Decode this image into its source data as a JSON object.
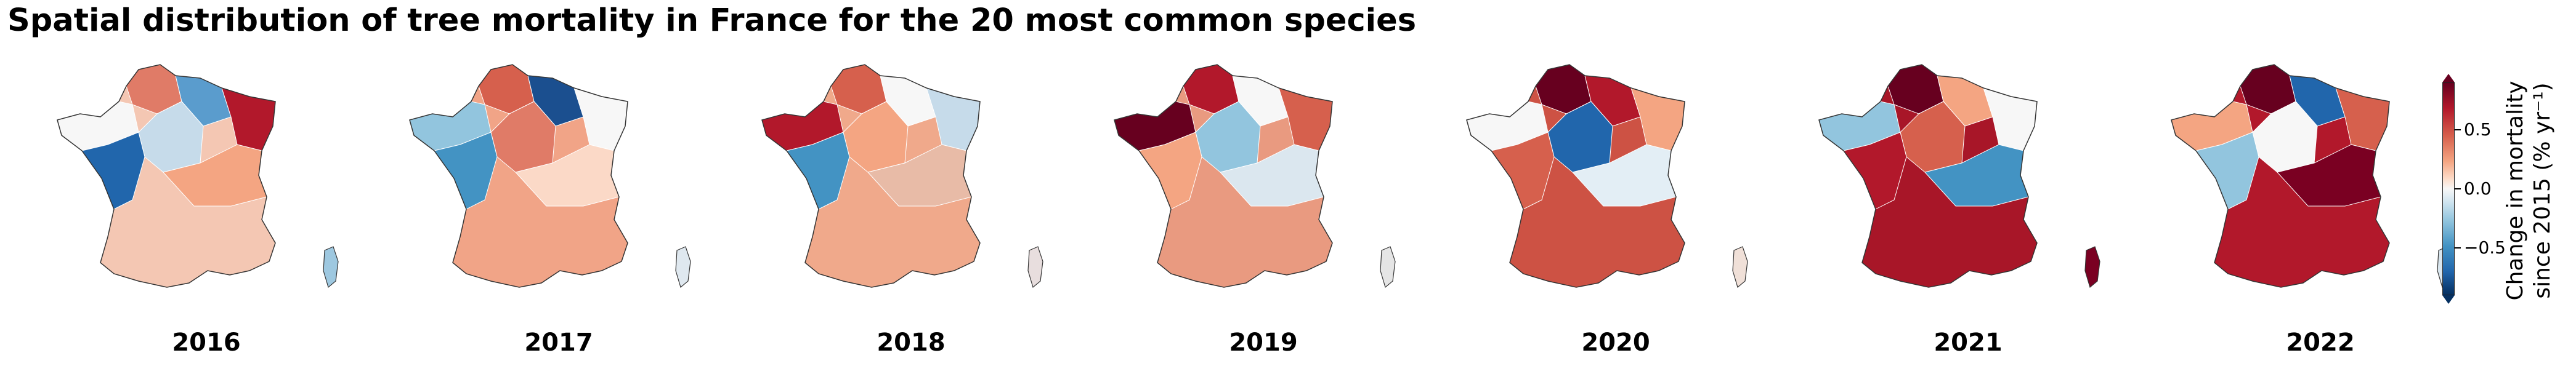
{
  "title": "Spatial distribution of tree mortality in France for the 20 most common species",
  "panels": [
    {
      "year": "2016",
      "fill": "#f4c7b3",
      "corsica": "#9ec8e0",
      "patches": [
        {
          "c": "#e07b67"
        },
        {
          "c": "#5a9ccd"
        },
        {
          "c": "#b2182b"
        },
        {
          "c": "#f7f7f7"
        },
        {
          "c": "#c6dbea"
        },
        {
          "c": "#2166ac"
        },
        {
          "c": "#f4a582"
        }
      ]
    },
    {
      "year": "2017",
      "fill": "#f1a487",
      "corsica": "#dfe8ef",
      "patches": [
        {
          "c": "#d6604d"
        },
        {
          "c": "#1b4f8f"
        },
        {
          "c": "#f7f7f7"
        },
        {
          "c": "#92c5de"
        },
        {
          "c": "#e07b67"
        },
        {
          "c": "#4393c3"
        },
        {
          "c": "#fbd9c7"
        }
      ]
    },
    {
      "year": "2018",
      "fill": "#f0a98b",
      "corsica": "#e8dede",
      "patches": [
        {
          "c": "#d6604d"
        },
        {
          "c": "#f7f7f7"
        },
        {
          "c": "#c6dbea"
        },
        {
          "c": "#b2182b"
        },
        {
          "c": "#f4a582"
        },
        {
          "c": "#4393c3"
        },
        {
          "c": "#e8bba7"
        }
      ]
    },
    {
      "year": "2019",
      "fill": "#e99a80",
      "corsica": "#e5e5e5",
      "patches": [
        {
          "c": "#b2182b"
        },
        {
          "c": "#f7f7f7"
        },
        {
          "c": "#d6604d"
        },
        {
          "c": "#67001f"
        },
        {
          "c": "#92c5de"
        },
        {
          "c": "#f4a582"
        },
        {
          "c": "#dbe7ef"
        }
      ]
    },
    {
      "year": "2020",
      "fill": "#cd5244",
      "corsica": "#f0e0d8",
      "patches": [
        {
          "c": "#67001f"
        },
        {
          "c": "#b2182b"
        },
        {
          "c": "#f4a582"
        },
        {
          "c": "#f7f7f7"
        },
        {
          "c": "#2166ac"
        },
        {
          "c": "#d6604d"
        },
        {
          "c": "#e3eef5"
        }
      ]
    },
    {
      "year": "2021",
      "fill": "#a81628",
      "corsica": "#7a0022",
      "patches": [
        {
          "c": "#67001f"
        },
        {
          "c": "#f4a582"
        },
        {
          "c": "#f7f7f7"
        },
        {
          "c": "#92c5de"
        },
        {
          "c": "#d6604d"
        },
        {
          "c": "#b2182b"
        },
        {
          "c": "#4393c3"
        }
      ]
    },
    {
      "year": "2022",
      "fill": "#b2182b",
      "corsica": "#d9e6ee",
      "patches": [
        {
          "c": "#67001f"
        },
        {
          "c": "#2166ac"
        },
        {
          "c": "#d6604d"
        },
        {
          "c": "#f4a582"
        },
        {
          "c": "#f7f7f7"
        },
        {
          "c": "#92c5de"
        },
        {
          "c": "#7a0022"
        }
      ]
    }
  ],
  "colorbar": {
    "label_line1": "Change in mortality",
    "label_line2": "since 2015 (% yr⁻¹)",
    "ticks": [
      {
        "label": "0.5",
        "value": 0.5
      },
      {
        "label": "0.0",
        "value": 0.0
      },
      {
        "label": "−0.5",
        "value": -0.5
      }
    ],
    "vmin": -0.9,
    "vmax": 0.9,
    "colors_top_to_bottom": [
      "#67001f",
      "#b2182b",
      "#d6604d",
      "#f4a582",
      "#fddbc7",
      "#f7f7f7",
      "#d1e5f0",
      "#92c5de",
      "#4393c3",
      "#2166ac",
      "#053061"
    ],
    "extend": "both"
  }
}
